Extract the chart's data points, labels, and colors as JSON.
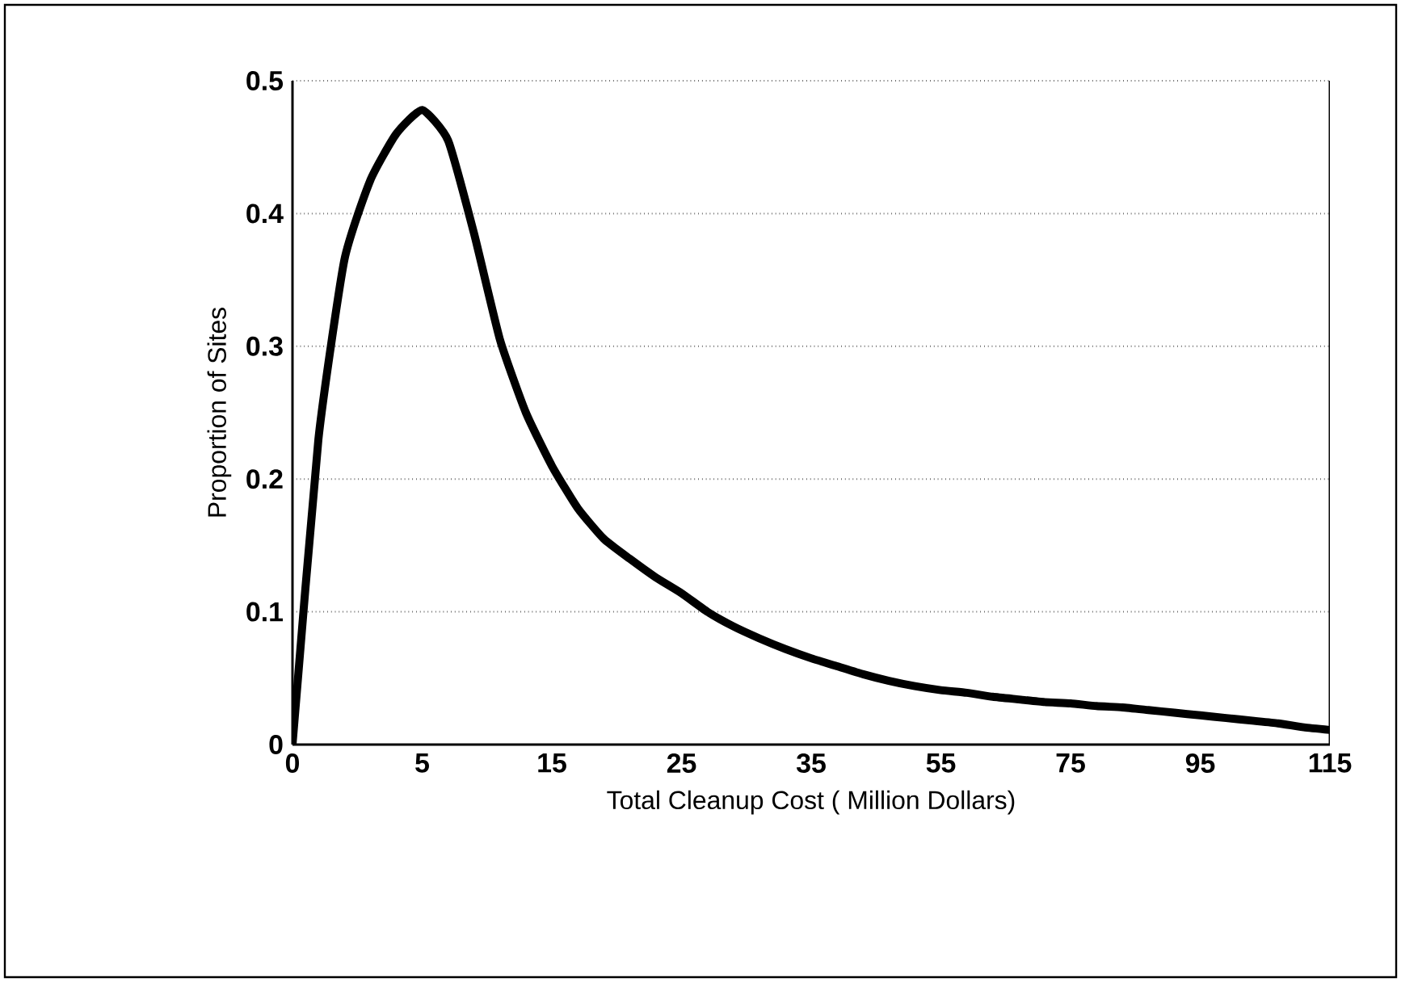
{
  "chart_data": {
    "type": "line",
    "xlabel": "Total Cleanup Cost ( Million Dollars)",
    "ylabel": "Proportion of Sites",
    "categories": [
      "0",
      null,
      null,
      null,
      null,
      "5",
      null,
      null,
      null,
      null,
      "15",
      null,
      null,
      null,
      null,
      "25",
      null,
      null,
      null,
      null,
      "35",
      null,
      null,
      null,
      null,
      "55",
      null,
      null,
      null,
      null,
      "75",
      null,
      null,
      null,
      null,
      "95",
      null,
      null,
      null,
      null,
      "115"
    ],
    "series": [
      {
        "color": "#000000",
        "values": [
          0,
          0.23,
          0.365,
          0.425,
          0.46,
          0.478,
          0.455,
          0.385,
          0.305,
          0.25,
          0.21,
          0.178,
          0.155,
          0.14,
          0.126,
          0.114,
          0.1,
          0.089,
          0.08,
          0.072,
          0.065,
          0.059,
          0.053,
          0.048,
          0.044,
          0.041,
          0.039,
          0.036,
          0.034,
          0.032,
          0.031,
          0.029,
          0.028,
          0.026,
          0.024,
          0.022,
          0.02,
          0.018,
          0.016,
          0.013,
          0.011
        ]
      }
    ],
    "ylim": [
      0,
      0.5
    ],
    "yticks": [
      0,
      0.1,
      0.2,
      0.3,
      0.4,
      0.5
    ],
    "grid": "y",
    "marker": "none",
    "line_style": "solid"
  }
}
